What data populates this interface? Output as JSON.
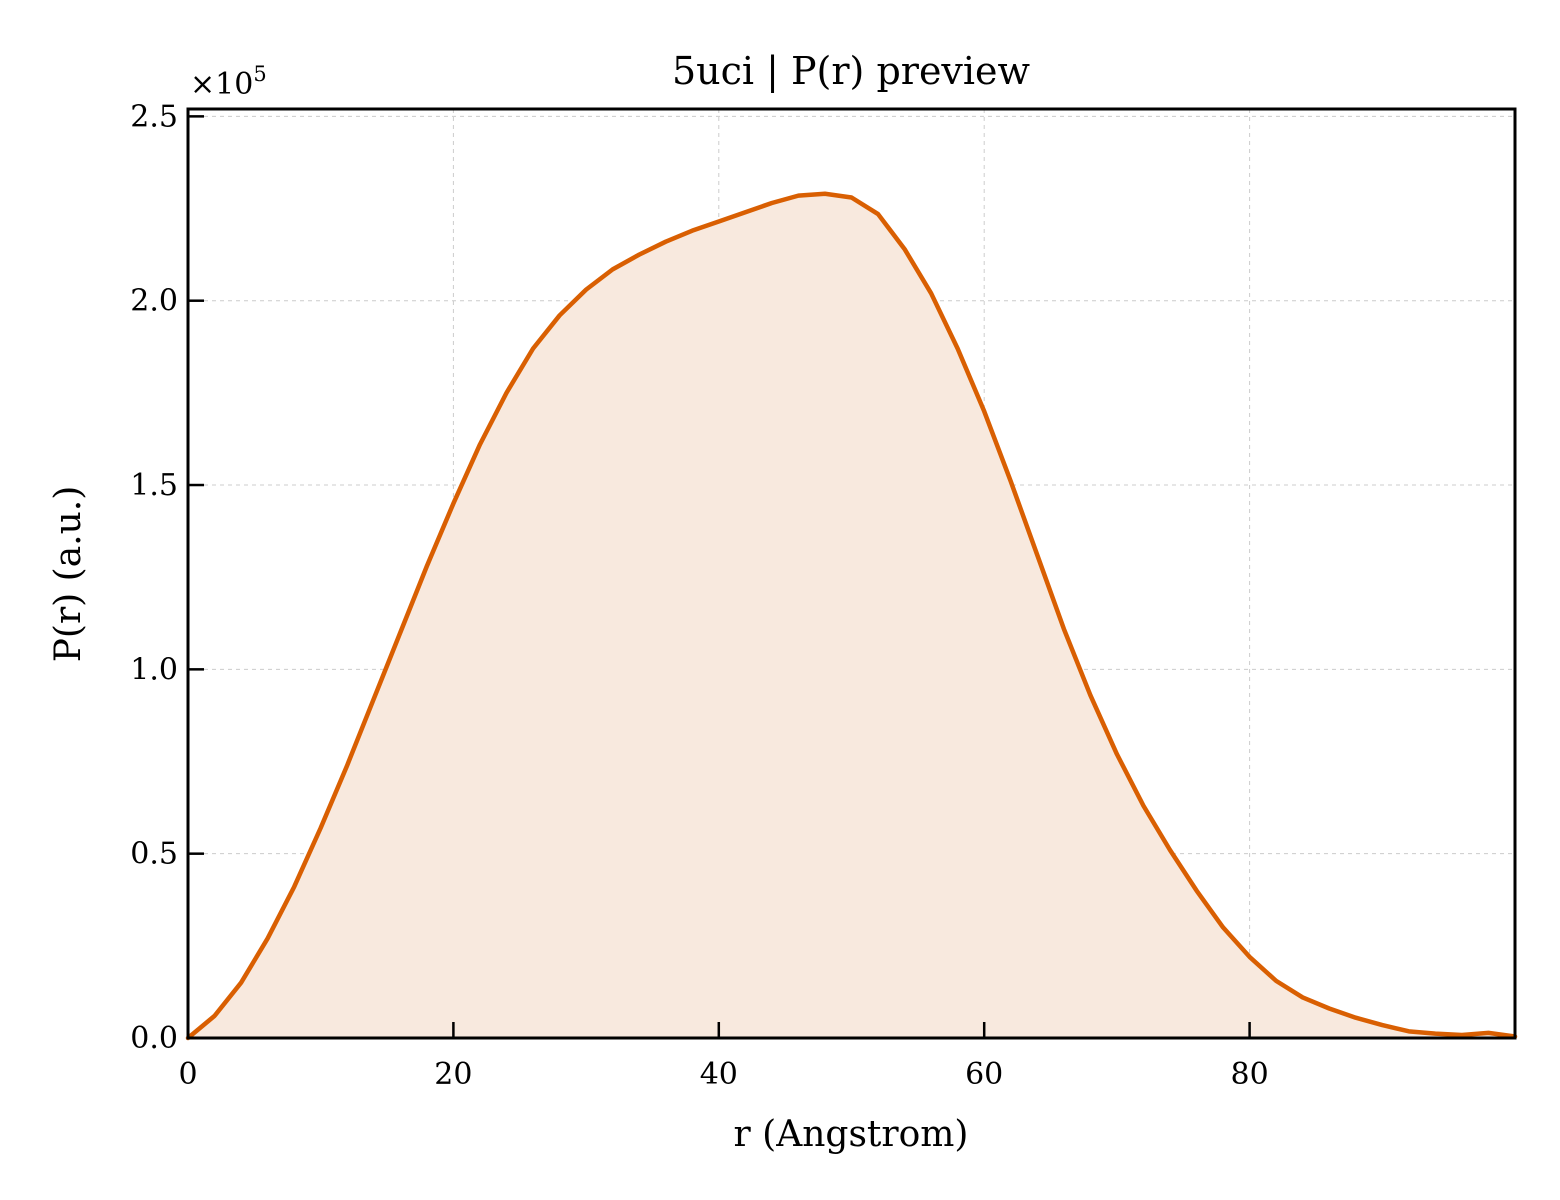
{
  "chart_data": {
    "type": "area",
    "title": "5uci | P(r) preview",
    "xlabel": "r (Angstrom)",
    "ylabel": "P(r) (a.u.)",
    "y_scale_label": "×10",
    "y_scale_exponent": "5",
    "xlim": [
      0,
      100
    ],
    "ylim": [
      0,
      2.52
    ],
    "x_ticks": [
      0,
      20,
      40,
      60,
      80
    ],
    "x_tick_labels": [
      "0",
      "20",
      "40",
      "60",
      "80"
    ],
    "y_ticks": [
      0.0,
      0.5,
      1.0,
      1.5,
      2.0,
      2.5
    ],
    "y_tick_labels": [
      "0.0",
      "0.5",
      "1.0",
      "1.5",
      "2.0",
      "2.5"
    ],
    "grid": true,
    "line_color": "#d95f02",
    "fill_color": "#f8e9de",
    "series": [
      {
        "x": [
          0,
          2,
          4,
          6,
          8,
          10,
          12,
          14,
          16,
          18,
          20,
          22,
          24,
          26,
          28,
          30,
          32,
          34,
          36,
          38,
          40,
          42,
          44,
          46,
          48,
          50,
          52,
          54,
          56,
          58,
          60,
          62,
          64,
          66,
          68,
          70,
          72,
          74,
          76,
          78,
          80,
          82,
          84,
          86,
          88,
          90,
          92,
          94,
          96,
          98,
          100
        ],
        "y": [
          0.0,
          0.06,
          0.15,
          0.27,
          0.41,
          0.57,
          0.74,
          0.92,
          1.1,
          1.28,
          1.45,
          1.61,
          1.75,
          1.87,
          1.96,
          2.03,
          2.085,
          2.125,
          2.16,
          2.19,
          2.215,
          2.24,
          2.265,
          2.285,
          2.29,
          2.28,
          2.235,
          2.14,
          2.02,
          1.87,
          1.7,
          1.51,
          1.31,
          1.11,
          0.93,
          0.77,
          0.63,
          0.51,
          0.4,
          0.3,
          0.22,
          0.155,
          0.11,
          0.08,
          0.055,
          0.035,
          0.018,
          0.012,
          0.008,
          0.014,
          0.004
        ]
      }
    ]
  }
}
